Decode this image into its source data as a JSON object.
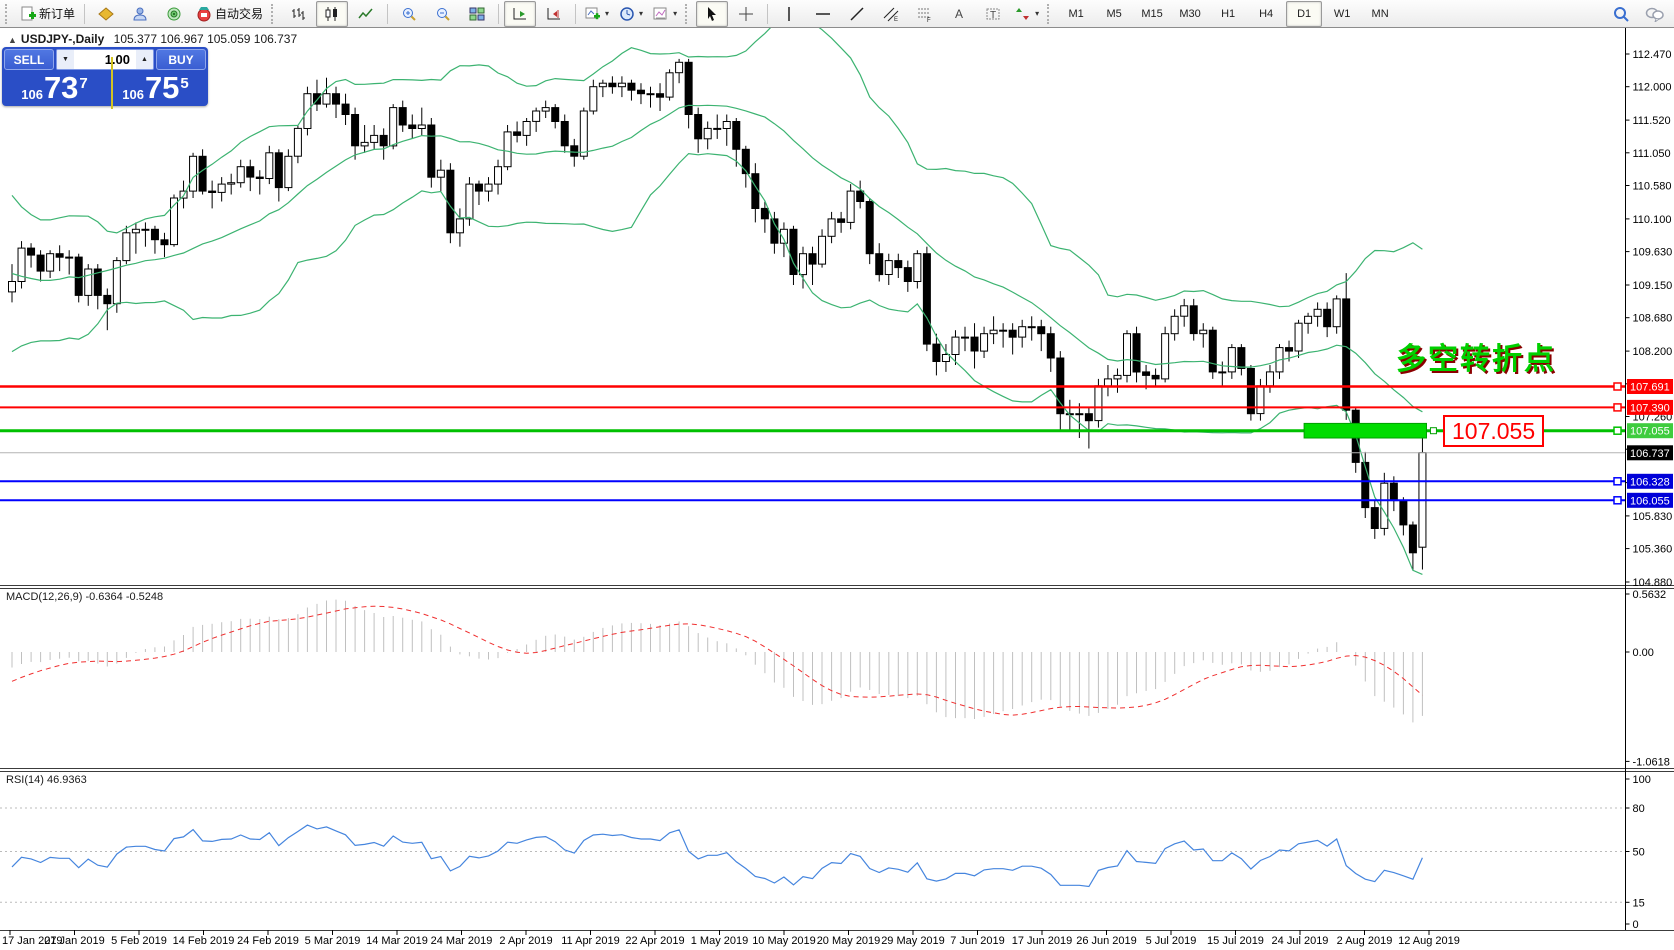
{
  "toolbar": {
    "new_order_label": "新订单",
    "auto_trading_label": "自动交易",
    "timeframes": [
      "M1",
      "M5",
      "M15",
      "M30",
      "H1",
      "H4",
      "D1",
      "W1",
      "MN"
    ],
    "active_timeframe": "D1",
    "icons": [
      "new-order",
      "gold-diamond",
      "profile",
      "signals",
      "auto-trading",
      "chart-bars",
      "chart-candles",
      "chart-line",
      "zoom-in",
      "zoom-out",
      "tile-windows",
      "auto-scroll",
      "chart-shift",
      "new-chart",
      "periods-clock",
      "templates",
      "cursor",
      "crosshair",
      "vertical-line",
      "horizontal-line",
      "trendline",
      "equidistant-channel",
      "fibonacci",
      "text",
      "text-label",
      "arrows",
      "search",
      "chat"
    ]
  },
  "chart_header": {
    "collapse_marker": "▲",
    "symbol_title": "USDJPY-,Daily",
    "ohlc_text": "105.377 106.967 105.059 106.737"
  },
  "trade_panel": {
    "sell_label": "SELL",
    "buy_label": "BUY",
    "volume": "1.00",
    "down_arrow": "▼",
    "up_arrow": "▲",
    "sell_price_small": "106",
    "sell_price_big": "73",
    "sell_price_sup": "7",
    "buy_price_small": "106",
    "buy_price_big": "75",
    "buy_price_sup": "5"
  },
  "annotations": {
    "turning_point_text": "多空转折点",
    "price_box_text": "107.055"
  },
  "indicator_labels": {
    "macd": "MACD(12,26,9) -0.6364 -0.5248",
    "rsi": "RSI(14) 46.9363"
  },
  "chart_data": {
    "type": "candlestick",
    "symbol": "USDJPY",
    "period": "Daily",
    "title_ohlc": [
      105.377,
      106.967,
      105.059,
      106.737
    ],
    "ylim": [
      104.83,
      112.84
    ],
    "y_axis_ticks": [
      112.47,
      112.0,
      111.52,
      111.05,
      110.58,
      110.1,
      109.63,
      109.15,
      108.68,
      108.2,
      107.73,
      107.26,
      106.79,
      106.31,
      105.83,
      105.36,
      104.88
    ],
    "x_axis_dates": [
      "17 Jan 2019",
      "27 Jan 2019",
      "5 Feb 2019",
      "14 Feb 2019",
      "24 Feb 2019",
      "5 Mar 2019",
      "14 Mar 2019",
      "24 Mar 2019",
      "2 Apr 2019",
      "11 Apr 2019",
      "22 Apr 2019",
      "1 May 2019",
      "10 May 2019",
      "20 May 2019",
      "29 May 2019",
      "7 Jun 2019",
      "17 Jun 2019",
      "26 Jun 2019",
      "5 Jul 2019",
      "15 Jul 2019",
      "24 Jul 2019",
      "2 Aug 2019",
      "12 Aug 2019"
    ],
    "candles": [
      [
        109.05,
        109.45,
        108.9,
        109.2
      ],
      [
        109.2,
        109.78,
        109.1,
        109.68
      ],
      [
        109.68,
        109.75,
        109.4,
        109.58
      ],
      [
        109.58,
        109.65,
        109.2,
        109.35
      ],
      [
        109.35,
        109.65,
        109.25,
        109.6
      ],
      [
        109.6,
        109.72,
        109.35,
        109.55
      ],
      [
        109.55,
        109.65,
        109.3,
        109.55
      ],
      [
        109.55,
        109.6,
        108.9,
        109.0
      ],
      [
        109.0,
        109.45,
        108.85,
        109.38
      ],
      [
        109.38,
        109.45,
        108.8,
        109.0
      ],
      [
        109.0,
        109.1,
        108.5,
        108.88
      ],
      [
        108.88,
        109.55,
        108.75,
        109.5
      ],
      [
        109.5,
        110.0,
        109.45,
        109.9
      ],
      [
        109.9,
        110.05,
        109.6,
        109.95
      ],
      [
        109.95,
        110.05,
        109.7,
        109.95
      ],
      [
        109.95,
        110.0,
        109.6,
        109.8
      ],
      [
        109.8,
        109.9,
        109.55,
        109.73
      ],
      [
        109.73,
        110.45,
        109.7,
        110.4
      ],
      [
        110.4,
        110.65,
        110.25,
        110.5
      ],
      [
        110.5,
        111.05,
        110.4,
        111.0
      ],
      [
        111.0,
        111.1,
        110.45,
        110.5
      ],
      [
        110.5,
        110.65,
        110.25,
        110.48
      ],
      [
        110.48,
        110.7,
        110.35,
        110.6
      ],
      [
        110.6,
        110.75,
        110.45,
        110.62
      ],
      [
        110.62,
        110.95,
        110.55,
        110.85
      ],
      [
        110.85,
        110.95,
        110.5,
        110.7
      ],
      [
        110.7,
        110.8,
        110.45,
        110.68
      ],
      [
        110.68,
        111.15,
        110.6,
        111.05
      ],
      [
        111.05,
        111.1,
        110.35,
        110.55
      ],
      [
        110.55,
        111.1,
        110.5,
        111.0
      ],
      [
        111.0,
        111.45,
        110.9,
        111.4
      ],
      [
        111.4,
        112.0,
        111.3,
        111.9
      ],
      [
        111.9,
        112.1,
        111.65,
        111.75
      ],
      [
        111.75,
        112.13,
        111.7,
        111.9
      ],
      [
        111.9,
        112.0,
        111.55,
        111.75
      ],
      [
        111.75,
        111.9,
        111.45,
        111.6
      ],
      [
        111.6,
        111.7,
        110.95,
        111.15
      ],
      [
        111.15,
        111.45,
        111.05,
        111.2
      ],
      [
        111.2,
        111.45,
        111.1,
        111.3
      ],
      [
        111.3,
        111.4,
        110.95,
        111.15
      ],
      [
        111.15,
        111.75,
        111.1,
        111.7
      ],
      [
        111.7,
        111.8,
        111.35,
        111.45
      ],
      [
        111.45,
        111.6,
        111.25,
        111.4
      ],
      [
        111.4,
        111.7,
        111.3,
        111.45
      ],
      [
        111.45,
        111.55,
        110.55,
        110.7
      ],
      [
        110.7,
        110.95,
        110.5,
        110.8
      ],
      [
        110.8,
        110.9,
        109.75,
        109.9
      ],
      [
        109.9,
        110.25,
        109.7,
        110.1
      ],
      [
        110.1,
        110.7,
        110.0,
        110.6
      ],
      [
        110.6,
        110.65,
        110.3,
        110.5
      ],
      [
        110.5,
        110.7,
        110.35,
        110.6
      ],
      [
        110.6,
        110.95,
        110.45,
        110.85
      ],
      [
        110.85,
        111.45,
        110.8,
        111.35
      ],
      [
        111.35,
        111.5,
        111.2,
        111.3
      ],
      [
        111.3,
        111.55,
        111.15,
        111.5
      ],
      [
        111.5,
        111.7,
        111.35,
        111.65
      ],
      [
        111.65,
        111.8,
        111.55,
        111.7
      ],
      [
        111.7,
        111.75,
        111.4,
        111.5
      ],
      [
        111.5,
        111.6,
        111.05,
        111.15
      ],
      [
        111.15,
        111.25,
        110.85,
        111.0
      ],
      [
        111.0,
        111.7,
        110.95,
        111.65
      ],
      [
        111.65,
        112.1,
        111.6,
        112.0
      ],
      [
        112.0,
        112.1,
        111.85,
        112.05
      ],
      [
        112.05,
        112.15,
        111.9,
        112.0
      ],
      [
        112.0,
        112.15,
        111.85,
        112.05
      ],
      [
        112.05,
        112.1,
        111.8,
        111.95
      ],
      [
        111.95,
        112.05,
        111.75,
        111.9
      ],
      [
        111.9,
        112.0,
        111.7,
        111.9
      ],
      [
        111.9,
        112.05,
        111.65,
        111.85
      ],
      [
        111.85,
        112.25,
        111.8,
        112.2
      ],
      [
        112.2,
        112.4,
        112.05,
        112.35
      ],
      [
        112.35,
        112.4,
        111.4,
        111.6
      ],
      [
        111.6,
        111.7,
        111.05,
        111.25
      ],
      [
        111.25,
        111.5,
        111.1,
        111.4
      ],
      [
        111.4,
        111.6,
        111.25,
        111.4
      ],
      [
        111.4,
        111.6,
        111.15,
        111.5
      ],
      [
        111.5,
        111.55,
        110.85,
        111.1
      ],
      [
        111.1,
        111.15,
        110.55,
        110.75
      ],
      [
        110.75,
        110.9,
        110.05,
        110.25
      ],
      [
        110.25,
        110.35,
        109.9,
        110.1
      ],
      [
        110.1,
        110.2,
        109.6,
        109.75
      ],
      [
        109.75,
        110.05,
        109.55,
        109.95
      ],
      [
        109.95,
        110.0,
        109.15,
        109.3
      ],
      [
        109.3,
        109.7,
        109.1,
        109.6
      ],
      [
        109.6,
        109.7,
        109.15,
        109.45
      ],
      [
        109.45,
        109.95,
        109.4,
        109.85
      ],
      [
        109.85,
        110.2,
        109.75,
        110.1
      ],
      [
        110.1,
        110.2,
        109.9,
        110.05
      ],
      [
        110.05,
        110.6,
        109.95,
        110.5
      ],
      [
        110.5,
        110.65,
        110.25,
        110.35
      ],
      [
        110.35,
        110.4,
        109.45,
        109.6
      ],
      [
        109.6,
        109.75,
        109.2,
        109.3
      ],
      [
        109.3,
        109.6,
        109.15,
        109.5
      ],
      [
        109.5,
        109.6,
        109.25,
        109.4
      ],
      [
        109.4,
        109.5,
        109.05,
        109.2
      ],
      [
        109.2,
        109.65,
        109.1,
        109.6
      ],
      [
        109.6,
        109.7,
        108.2,
        108.3
      ],
      [
        108.3,
        108.45,
        107.85,
        108.05
      ],
      [
        108.05,
        108.3,
        107.9,
        108.15
      ],
      [
        108.15,
        108.5,
        108.0,
        108.4
      ],
      [
        108.4,
        108.55,
        108.2,
        108.4
      ],
      [
        108.4,
        108.6,
        107.95,
        108.2
      ],
      [
        108.2,
        108.55,
        108.1,
        108.45
      ],
      [
        108.45,
        108.7,
        108.3,
        108.5
      ],
      [
        108.5,
        108.6,
        108.25,
        108.5
      ],
      [
        108.5,
        108.6,
        108.15,
        108.4
      ],
      [
        108.4,
        108.65,
        108.25,
        108.55
      ],
      [
        108.55,
        108.7,
        108.35,
        108.55
      ],
      [
        108.55,
        108.65,
        108.2,
        108.45
      ],
      [
        108.45,
        108.55,
        107.9,
        108.1
      ],
      [
        108.1,
        108.2,
        107.05,
        107.3
      ],
      [
        107.3,
        107.5,
        107.05,
        107.3
      ],
      [
        107.3,
        107.45,
        106.95,
        107.3
      ],
      [
        107.3,
        107.4,
        106.8,
        107.2
      ],
      [
        107.2,
        107.8,
        107.1,
        107.7
      ],
      [
        107.7,
        108.0,
        107.55,
        107.8
      ],
      [
        107.8,
        107.95,
        107.6,
        107.85
      ],
      [
        107.85,
        108.5,
        107.75,
        108.45
      ],
      [
        108.45,
        108.55,
        107.75,
        107.9
      ],
      [
        107.9,
        108.0,
        107.65,
        107.85
      ],
      [
        107.85,
        107.95,
        107.7,
        107.8
      ],
      [
        107.8,
        108.55,
        107.75,
        108.45
      ],
      [
        108.45,
        108.8,
        108.35,
        108.7
      ],
      [
        108.7,
        108.95,
        108.55,
        108.85
      ],
      [
        108.85,
        108.95,
        108.35,
        108.45
      ],
      [
        108.45,
        108.6,
        108.25,
        108.5
      ],
      [
        108.5,
        108.55,
        107.8,
        107.9
      ],
      [
        107.9,
        108.05,
        107.7,
        107.9
      ],
      [
        107.9,
        108.3,
        107.8,
        108.25
      ],
      [
        108.25,
        108.3,
        107.85,
        107.95
      ],
      [
        107.95,
        108.0,
        107.2,
        107.3
      ],
      [
        107.3,
        107.8,
        107.2,
        107.7
      ],
      [
        107.7,
        108.0,
        107.6,
        107.9
      ],
      [
        107.9,
        108.3,
        107.8,
        108.25
      ],
      [
        108.25,
        108.35,
        108.05,
        108.2
      ],
      [
        108.2,
        108.65,
        108.1,
        108.6
      ],
      [
        108.6,
        108.75,
        108.45,
        108.7
      ],
      [
        108.7,
        108.9,
        108.55,
        108.8
      ],
      [
        108.8,
        108.9,
        108.4,
        108.55
      ],
      [
        108.55,
        109.0,
        108.45,
        108.95
      ],
      [
        108.95,
        109.32,
        107.21,
        107.35
      ],
      [
        107.35,
        107.4,
        106.45,
        106.6
      ],
      [
        106.6,
        106.75,
        105.8,
        105.95
      ],
      [
        105.95,
        106.05,
        105.5,
        105.65
      ],
      [
        105.65,
        106.45,
        105.55,
        106.3
      ],
      [
        106.3,
        106.4,
        105.9,
        106.05
      ],
      [
        106.05,
        106.1,
        105.55,
        105.7
      ],
      [
        105.7,
        105.75,
        105.05,
        105.3
      ],
      [
        105.38,
        106.97,
        105.06,
        106.74
      ]
    ],
    "indicator_warmup_closes": [
      110.4,
      110.5,
      110.2,
      109.9,
      109.6,
      109.2,
      108.9,
      109.2,
      108.7,
      108.3,
      108.2,
      108.8,
      109.1,
      109.4,
      109.2,
      109.5,
      109.3,
      109.6,
      109.8,
      109.7
    ],
    "bands": {
      "period": 20,
      "deviation": 2,
      "color": "#3CB371"
    },
    "macd": {
      "fast": 12,
      "slow": 26,
      "signal_period": 9,
      "histogram_color": "#c0c0c0",
      "signal_color": "#f03030",
      "axis_ticks": [
        0.5632,
        0,
        -1.0618
      ],
      "main_value": -0.6364,
      "signal_value": -0.5248
    },
    "rsi": {
      "period": 14,
      "value": 46.9363,
      "color": "#4585de",
      "levels": [
        80,
        50,
        15
      ],
      "axis_ticks": [
        100,
        80,
        50,
        15,
        0
      ]
    },
    "hlines": [
      {
        "price": 107.691,
        "color": "#ff0000",
        "width": 2.5,
        "label_bg": "#ff0000"
      },
      {
        "price": 107.39,
        "color": "#ff0000",
        "width": 2,
        "label_bg": "#ff0000"
      },
      {
        "price": 107.055,
        "color": "#00c000",
        "width": 3,
        "label_bg": "#3ecc3e"
      },
      {
        "price": 106.328,
        "color": "#0000ff",
        "width": 2,
        "label_bg": "#0000d8"
      },
      {
        "price": 106.055,
        "color": "#0000ff",
        "width": 2,
        "label_bg": "#0000d8"
      }
    ],
    "current_price": {
      "value": 106.737,
      "label_bg": "#000000",
      "line_color": "#b4b4b4"
    },
    "highlight_rect": {
      "price_top": 107.16,
      "price_bottom": 106.95,
      "bar_from": 136,
      "bar_to": 148,
      "color": "#00dc00"
    }
  }
}
